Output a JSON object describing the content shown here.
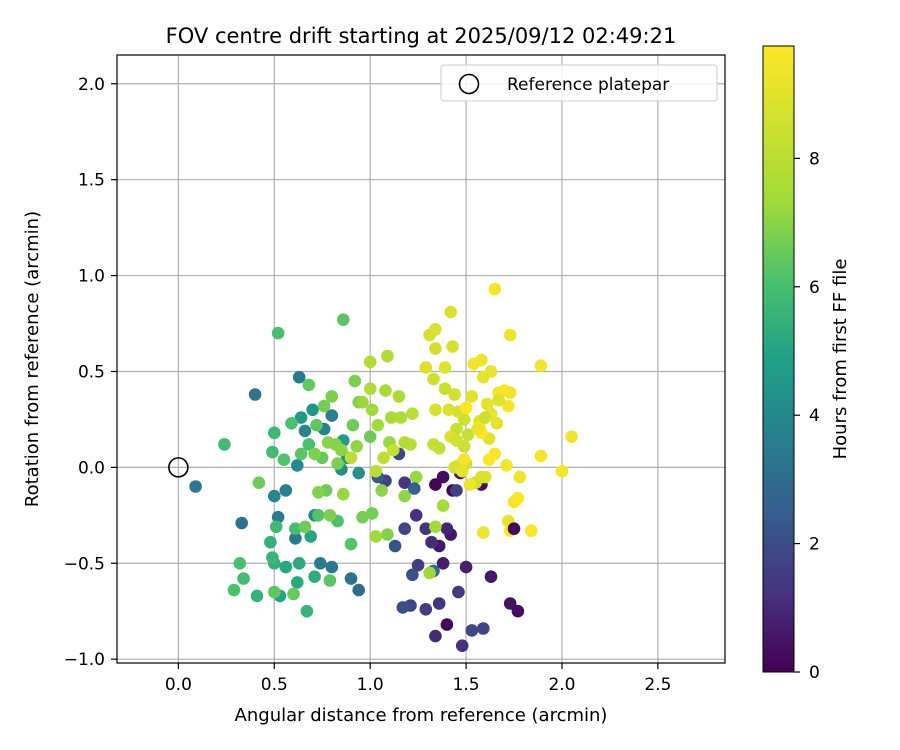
{
  "chart_data": {
    "type": "scatter",
    "title": "FOV centre drift starting at 2025/09/12 02:49:21",
    "xlabel": "Angular distance from reference (arcmin)",
    "ylabel": "Rotation from reference (arcmin)",
    "xlim": [
      -0.32,
      2.85
    ],
    "ylim": [
      -1.02,
      2.15
    ],
    "x_ticks": [
      0.0,
      0.5,
      1.0,
      1.5,
      2.0,
      2.5
    ],
    "x_tick_labels": [
      "0.0",
      "0.5",
      "1.0",
      "1.5",
      "2.0",
      "2.5"
    ],
    "y_ticks": [
      -1.0,
      -0.5,
      0.0,
      0.5,
      1.0,
      1.5,
      2.0
    ],
    "y_tick_labels": [
      "−1.0",
      "−0.5",
      "0.0",
      "0.5",
      "1.0",
      "1.5",
      "2.0"
    ],
    "grid": true,
    "legend": {
      "placement": "top-right",
      "entries": [
        "Reference platepar"
      ]
    },
    "reference_point": {
      "x": 0.0,
      "y": 0.0,
      "label": "Reference platepar"
    },
    "colorbar": {
      "label": "Hours from first FF file",
      "min": 0,
      "max": 9.75,
      "ticks": [
        0,
        2,
        4,
        6,
        8
      ],
      "tick_labels": [
        "0",
        "2",
        "4",
        "6",
        "8"
      ],
      "colormap": "viridis"
    },
    "points": [
      {
        "x": 1.34,
        "y": -0.09,
        "t": 0.1
      },
      {
        "x": 1.38,
        "y": -0.05,
        "t": 0.3
      },
      {
        "x": 1.47,
        "y": -0.03,
        "t": 0.5
      },
      {
        "x": 1.43,
        "y": -0.12,
        "t": 0.2
      },
      {
        "x": 1.58,
        "y": -0.09,
        "t": 0.4
      },
      {
        "x": 1.36,
        "y": -0.41,
        "t": 0.6
      },
      {
        "x": 1.38,
        "y": -0.5,
        "t": 0.7
      },
      {
        "x": 1.42,
        "y": -0.35,
        "t": 0.5
      },
      {
        "x": 1.24,
        "y": -0.25,
        "t": 1.2
      },
      {
        "x": 1.32,
        "y": -0.39,
        "t": 1.1
      },
      {
        "x": 1.29,
        "y": -0.32,
        "t": 1.3
      },
      {
        "x": 1.4,
        "y": -0.32,
        "t": 0.9
      },
      {
        "x": 1.5,
        "y": -0.52,
        "t": 0.8
      },
      {
        "x": 1.63,
        "y": -0.57,
        "t": 0.6
      },
      {
        "x": 1.73,
        "y": -0.71,
        "t": 0.4
      },
      {
        "x": 1.77,
        "y": -0.75,
        "t": 0.3
      },
      {
        "x": 1.4,
        "y": -0.82,
        "t": 0.2
      },
      {
        "x": 1.34,
        "y": -0.88,
        "t": 1.0
      },
      {
        "x": 1.48,
        "y": -0.93,
        "t": 1.2
      },
      {
        "x": 1.46,
        "y": -0.65,
        "t": 1.4
      },
      {
        "x": 1.53,
        "y": -0.85,
        "t": 1.9
      },
      {
        "x": 1.59,
        "y": -0.84,
        "t": 1.7
      },
      {
        "x": 1.36,
        "y": -0.71,
        "t": 1.3
      },
      {
        "x": 1.29,
        "y": -0.74,
        "t": 1.5
      },
      {
        "x": 1.21,
        "y": -0.72,
        "t": 1.8
      },
      {
        "x": 1.17,
        "y": -0.73,
        "t": 2.0
      },
      {
        "x": 1.25,
        "y": -0.51,
        "t": 1.6
      },
      {
        "x": 1.22,
        "y": -0.56,
        "t": 2.1
      },
      {
        "x": 1.18,
        "y": -0.32,
        "t": 1.8
      },
      {
        "x": 1.13,
        "y": -0.41,
        "t": 2.2
      },
      {
        "x": 1.08,
        "y": -0.07,
        "t": 1.7
      },
      {
        "x": 1.15,
        "y": 0.07,
        "t": 1.9
      },
      {
        "x": 1.18,
        "y": -0.08,
        "t": 1.4
      },
      {
        "x": 1.04,
        "y": -0.05,
        "t": 2.4
      },
      {
        "x": 1.33,
        "y": -0.54,
        "t": 3.0
      },
      {
        "x": 0.94,
        "y": -0.64,
        "t": 3.0
      },
      {
        "x": 0.9,
        "y": -0.58,
        "t": 3.2
      },
      {
        "x": 0.8,
        "y": -0.52,
        "t": 3.3
      },
      {
        "x": 0.74,
        "y": -0.5,
        "t": 3.5
      },
      {
        "x": 0.61,
        "y": -0.37,
        "t": 3.4
      },
      {
        "x": 0.52,
        "y": -0.26,
        "t": 3.6
      },
      {
        "x": 0.56,
        "y": -0.12,
        "t": 3.8
      },
      {
        "x": 0.62,
        "y": 0.01,
        "t": 4.0
      },
      {
        "x": 0.66,
        "y": 0.19,
        "t": 3.9
      },
      {
        "x": 0.76,
        "y": 0.2,
        "t": 3.7
      },
      {
        "x": 0.8,
        "y": 0.27,
        "t": 3.6
      },
      {
        "x": 0.63,
        "y": 0.47,
        "t": 3.5
      },
      {
        "x": 0.4,
        "y": 0.38,
        "t": 3.3
      },
      {
        "x": 0.33,
        "y": -0.29,
        "t": 3.2
      },
      {
        "x": 0.09,
        "y": -0.1,
        "t": 3.4
      },
      {
        "x": 0.5,
        "y": -0.15,
        "t": 3.9
      },
      {
        "x": 0.71,
        "y": -0.25,
        "t": 4.1
      },
      {
        "x": 0.85,
        "y": -0.01,
        "t": 4.2
      },
      {
        "x": 0.88,
        "y": 0.05,
        "t": 4.4
      },
      {
        "x": 0.94,
        "y": -0.03,
        "t": 4.3
      },
      {
        "x": 0.7,
        "y": 0.3,
        "t": 4.5
      },
      {
        "x": 0.64,
        "y": 0.26,
        "t": 4.6
      },
      {
        "x": 0.86,
        "y": 0.14,
        "t": 4.7
      },
      {
        "x": 0.71,
        "y": -0.57,
        "t": 5.3
      },
      {
        "x": 0.62,
        "y": -0.6,
        "t": 5.2
      },
      {
        "x": 0.56,
        "y": -0.52,
        "t": 5.1
      },
      {
        "x": 0.53,
        "y": -0.67,
        "t": 5.0
      },
      {
        "x": 0.67,
        "y": -0.75,
        "t": 5.6
      },
      {
        "x": 0.5,
        "y": -0.5,
        "t": 5.4
      },
      {
        "x": 0.49,
        "y": -0.47,
        "t": 5.7
      },
      {
        "x": 0.48,
        "y": -0.39,
        "t": 5.5
      },
      {
        "x": 0.51,
        "y": -0.31,
        "t": 5.8
      },
      {
        "x": 0.61,
        "y": -0.32,
        "t": 5.9
      },
      {
        "x": 0.63,
        "y": -0.5,
        "t": 5.2
      },
      {
        "x": 0.69,
        "y": -0.36,
        "t": 5.0
      },
      {
        "x": 0.41,
        "y": -0.67,
        "t": 5.5
      },
      {
        "x": 0.34,
        "y": -0.58,
        "t": 5.9
      },
      {
        "x": 0.32,
        "y": -0.5,
        "t": 6.0
      },
      {
        "x": 0.29,
        "y": -0.64,
        "t": 6.1
      },
      {
        "x": 0.52,
        "y": 0.7,
        "t": 6.0
      },
      {
        "x": 0.24,
        "y": 0.12,
        "t": 5.8
      },
      {
        "x": 0.5,
        "y": 0.18,
        "t": 5.7
      },
      {
        "x": 0.49,
        "y": 0.08,
        "t": 5.9
      },
      {
        "x": 0.55,
        "y": 0.04,
        "t": 6.2
      },
      {
        "x": 0.59,
        "y": 0.23,
        "t": 6.1
      },
      {
        "x": 0.64,
        "y": 0.07,
        "t": 6.3
      },
      {
        "x": 0.68,
        "y": 0.12,
        "t": 6.0
      },
      {
        "x": 0.72,
        "y": 0.22,
        "t": 6.4
      },
      {
        "x": 0.75,
        "y": 0.05,
        "t": 6.5
      },
      {
        "x": 0.77,
        "y": -0.12,
        "t": 6.6
      },
      {
        "x": 0.73,
        "y": -0.25,
        "t": 6.2
      },
      {
        "x": 0.79,
        "y": -0.59,
        "t": 6.3
      },
      {
        "x": 0.83,
        "y": -0.28,
        "t": 6.1
      },
      {
        "x": 0.9,
        "y": -0.4,
        "t": 6.2
      },
      {
        "x": 0.68,
        "y": 0.43,
        "t": 6.4
      },
      {
        "x": 0.86,
        "y": 0.77,
        "t": 6.3
      },
      {
        "x": 0.91,
        "y": 0.22,
        "t": 6.6
      },
      {
        "x": 0.92,
        "y": 0.45,
        "t": 6.8
      },
      {
        "x": 0.96,
        "y": -0.26,
        "t": 6.7
      },
      {
        "x": 0.76,
        "y": 0.32,
        "t": 6.7
      },
      {
        "x": 0.8,
        "y": 0.37,
        "t": 6.8
      },
      {
        "x": 0.94,
        "y": 0.34,
        "t": 6.9
      },
      {
        "x": 0.83,
        "y": 0.02,
        "t": 6.8
      },
      {
        "x": 0.73,
        "y": -0.13,
        "t": 6.9
      },
      {
        "x": 0.66,
        "y": -0.31,
        "t": 6.6
      },
      {
        "x": 0.6,
        "y": -0.66,
        "t": 6.5
      },
      {
        "x": 0.5,
        "y": -0.65,
        "t": 6.4
      },
      {
        "x": 0.42,
        "y": -0.08,
        "t": 6.6
      },
      {
        "x": 0.71,
        "y": 0.07,
        "t": 6.8
      },
      {
        "x": 0.79,
        "y": -0.25,
        "t": 6.8
      },
      {
        "x": 0.82,
        "y": 0.12,
        "t": 6.9
      },
      {
        "x": 1.0,
        "y": 0.16,
        "t": 6.6
      },
      {
        "x": 1.01,
        "y": -0.24,
        "t": 6.7
      },
      {
        "x": 1.09,
        "y": -0.35,
        "t": 6.9
      },
      {
        "x": 1.06,
        "y": -0.12,
        "t": 7.0
      },
      {
        "x": 1.18,
        "y": -0.15,
        "t": 7.1
      },
      {
        "x": 1.24,
        "y": -0.05,
        "t": 7.2
      },
      {
        "x": 1.31,
        "y": -0.55,
        "t": 7.3
      },
      {
        "x": 1.34,
        "y": -0.31,
        "t": 7.4
      },
      {
        "x": 1.38,
        "y": -0.2,
        "t": 7.5
      },
      {
        "x": 1.03,
        "y": -0.36,
        "t": 7.3
      },
      {
        "x": 1.1,
        "y": 0.13,
        "t": 7.2
      },
      {
        "x": 0.85,
        "y": 0.09,
        "t": 7.0
      },
      {
        "x": 0.78,
        "y": 0.13,
        "t": 7.0
      },
      {
        "x": 0.86,
        "y": -0.14,
        "t": 7.2
      },
      {
        "x": 0.93,
        "y": 0.11,
        "t": 7.1
      },
      {
        "x": 0.96,
        "y": 0.34,
        "t": 7.2
      },
      {
        "x": 1.01,
        "y": 0.3,
        "t": 7.3
      },
      {
        "x": 1.04,
        "y": 0.22,
        "t": 7.4
      },
      {
        "x": 1.11,
        "y": 0.26,
        "t": 7.5
      },
      {
        "x": 1.08,
        "y": 0.4,
        "t": 7.5
      },
      {
        "x": 1.15,
        "y": 0.37,
        "t": 7.6
      },
      {
        "x": 1.0,
        "y": 0.41,
        "t": 7.7
      },
      {
        "x": 1.0,
        "y": 0.55,
        "t": 7.8
      },
      {
        "x": 1.09,
        "y": 0.58,
        "t": 7.7
      },
      {
        "x": 1.18,
        "y": 0.13,
        "t": 7.8
      },
      {
        "x": 1.21,
        "y": 0.12,
        "t": 7.9
      },
      {
        "x": 1.22,
        "y": 0.28,
        "t": 8.0
      },
      {
        "x": 1.07,
        "y": 0.05,
        "t": 8.1
      },
      {
        "x": 1.12,
        "y": 0.09,
        "t": 8.2
      },
      {
        "x": 1.03,
        "y": -0.02,
        "t": 8.0
      },
      {
        "x": 0.9,
        "y": 0.05,
        "t": 8.1
      },
      {
        "x": 1.33,
        "y": 0.12,
        "t": 8.3
      },
      {
        "x": 1.36,
        "y": 0.1,
        "t": 8.2
      },
      {
        "x": 1.45,
        "y": 0.2,
        "t": 8.3
      },
      {
        "x": 1.49,
        "y": 0.25,
        "t": 8.5
      },
      {
        "x": 1.51,
        "y": 0.17,
        "t": 8.4
      },
      {
        "x": 1.44,
        "y": 0.38,
        "t": 8.6
      },
      {
        "x": 1.33,
        "y": 0.46,
        "t": 8.5
      },
      {
        "x": 1.34,
        "y": 0.62,
        "t": 8.6
      },
      {
        "x": 1.31,
        "y": 0.69,
        "t": 8.7
      },
      {
        "x": 1.34,
        "y": 0.72,
        "t": 8.8
      },
      {
        "x": 1.42,
        "y": 0.81,
        "t": 8.8
      },
      {
        "x": 1.43,
        "y": 0.63,
        "t": 8.7
      },
      {
        "x": 1.39,
        "y": 0.52,
        "t": 8.9
      },
      {
        "x": 1.29,
        "y": 0.52,
        "t": 8.9
      },
      {
        "x": 1.34,
        "y": 0.3,
        "t": 8.8
      },
      {
        "x": 1.41,
        "y": 0.3,
        "t": 8.9
      },
      {
        "x": 1.46,
        "y": 0.29,
        "t": 8.7
      },
      {
        "x": 1.42,
        "y": 0.16,
        "t": 8.8
      },
      {
        "x": 1.45,
        "y": 0.14,
        "t": 8.6
      },
      {
        "x": 1.5,
        "y": 0.02,
        "t": 8.5
      },
      {
        "x": 1.49,
        "y": 0.11,
        "t": 8.4
      },
      {
        "x": 1.55,
        "y": -0.08,
        "t": 8.6
      },
      {
        "x": 1.58,
        "y": -0.05,
        "t": 8.7
      },
      {
        "x": 1.6,
        "y": -0.05,
        "t": 8.9
      },
      {
        "x": 1.53,
        "y": 0.37,
        "t": 9.0
      },
      {
        "x": 1.57,
        "y": 0.24,
        "t": 9.0
      },
      {
        "x": 1.61,
        "y": 0.33,
        "t": 9.1
      },
      {
        "x": 1.63,
        "y": 0.28,
        "t": 9.2
      },
      {
        "x": 1.66,
        "y": 0.23,
        "t": 9.1
      },
      {
        "x": 1.62,
        "y": 0.15,
        "t": 9.0
      },
      {
        "x": 1.59,
        "y": 0.47,
        "t": 9.1
      },
      {
        "x": 1.63,
        "y": 0.5,
        "t": 9.2
      },
      {
        "x": 1.58,
        "y": 0.56,
        "t": 9.3
      },
      {
        "x": 1.54,
        "y": 0.54,
        "t": 9.4
      },
      {
        "x": 1.73,
        "y": 0.69,
        "t": 9.3
      },
      {
        "x": 1.65,
        "y": 0.93,
        "t": 9.5
      },
      {
        "x": 1.89,
        "y": 0.53,
        "t": 9.4
      },
      {
        "x": 1.67,
        "y": 0.39,
        "t": 9.5
      },
      {
        "x": 1.7,
        "y": 0.4,
        "t": 9.6
      },
      {
        "x": 1.73,
        "y": 0.39,
        "t": 9.4
      },
      {
        "x": 1.72,
        "y": 0.32,
        "t": 9.5
      },
      {
        "x": 1.57,
        "y": 0.21,
        "t": 9.6
      },
      {
        "x": 1.58,
        "y": 0.18,
        "t": 9.7
      },
      {
        "x": 1.65,
        "y": 0.07,
        "t": 9.6
      },
      {
        "x": 1.62,
        "y": 0.04,
        "t": 9.7
      },
      {
        "x": 1.5,
        "y": 0.31,
        "t": 9.7
      },
      {
        "x": 1.49,
        "y": 0.04,
        "t": 9.6
      },
      {
        "x": 1.46,
        "y": 0.01,
        "t": 9.5
      },
      {
        "x": 1.52,
        "y": -0.09,
        "t": 9.4
      },
      {
        "x": 1.59,
        "y": -0.34,
        "t": 9.3
      },
      {
        "x": 1.71,
        "y": 0.01,
        "t": 9.5
      },
      {
        "x": 1.75,
        "y": -0.18,
        "t": 9.6
      },
      {
        "x": 1.77,
        "y": -0.16,
        "t": 9.7
      },
      {
        "x": 1.72,
        "y": -0.28,
        "t": 9.2
      },
      {
        "x": 1.73,
        "y": -0.33,
        "t": 9.6
      },
      {
        "x": 1.84,
        "y": -0.33,
        "t": 9.7
      },
      {
        "x": 1.78,
        "y": -0.05,
        "t": 9.3
      },
      {
        "x": 1.89,
        "y": 0.06,
        "t": 9.6
      },
      {
        "x": 2.0,
        "y": -0.02,
        "t": 9.5
      },
      {
        "x": 2.05,
        "y": 0.16,
        "t": 9.4
      },
      {
        "x": 1.75,
        "y": -0.32,
        "t": 0.2
      },
      {
        "x": 1.56,
        "y": 0.2,
        "t": 9.2
      },
      {
        "x": 1.67,
        "y": 0.35,
        "t": 8.9
      },
      {
        "x": 1.6,
        "y": 0.26,
        "t": 8.5
      },
      {
        "x": 1.39,
        "y": 0.41,
        "t": 8.4
      },
      {
        "x": 1.16,
        "y": 0.26,
        "t": 7.6
      },
      {
        "x": 1.23,
        "y": -0.11,
        "t": 2.6
      },
      {
        "x": 1.45,
        "y": -0.12,
        "t": 1.6
      },
      {
        "x": 1.44,
        "y": 0.0,
        "t": 8.7
      },
      {
        "x": 1.48,
        "y": -0.02,
        "t": 9.1
      }
    ]
  }
}
